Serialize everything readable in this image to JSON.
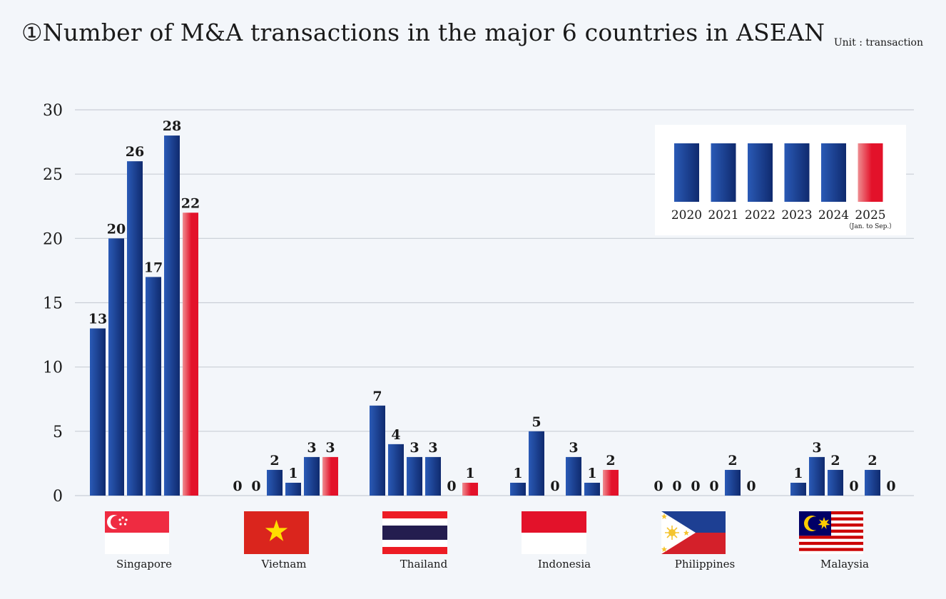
{
  "page": {
    "title": "①Number of M&A transactions in the major 6 countries in ASEAN",
    "unit": "Unit : transaction"
  },
  "colors": {
    "blue_light": "#2856b0",
    "blue_dark": "#0f2a6e",
    "red_light": "#f2878a",
    "red_dark": "#e3122a",
    "grid": "#c9ced6",
    "background": "#f3f6fa"
  },
  "chart_data": {
    "type": "bar",
    "title": "①Number of M&A transactions in the major 6 countries in ASEAN",
    "xlabel": "",
    "ylabel": "",
    "unit": "Unit : transaction",
    "ylim": [
      0,
      30
    ],
    "yticks": [
      0,
      5,
      10,
      15,
      20,
      25,
      30
    ],
    "grid": true,
    "legend_position": "top-right",
    "categories": [
      "Singapore",
      "Vietnam",
      "Thailand",
      "Indonesia",
      "Philippines",
      "Malaysia"
    ],
    "series": [
      {
        "name": "2020",
        "note": "",
        "color": "blue",
        "values": [
          13,
          0,
          7,
          1,
          0,
          1
        ]
      },
      {
        "name": "2021",
        "note": "",
        "color": "blue",
        "values": [
          20,
          0,
          4,
          5,
          0,
          3
        ]
      },
      {
        "name": "2022",
        "note": "",
        "color": "blue",
        "values": [
          26,
          2,
          3,
          0,
          0,
          2
        ]
      },
      {
        "name": "2023",
        "note": "",
        "color": "blue",
        "values": [
          17,
          1,
          3,
          3,
          0,
          0
        ]
      },
      {
        "name": "2024",
        "note": "",
        "color": "blue",
        "values": [
          28,
          3,
          0,
          1,
          2,
          2
        ]
      },
      {
        "name": "2025",
        "note": "（Jan. to Sep.）",
        "color": "red",
        "values": [
          22,
          3,
          1,
          2,
          0,
          0
        ]
      }
    ]
  },
  "flags": [
    {
      "country": "Singapore",
      "icon": "singapore-flag-icon"
    },
    {
      "country": "Vietnam",
      "icon": "vietnam-flag-icon"
    },
    {
      "country": "Thailand",
      "icon": "thailand-flag-icon"
    },
    {
      "country": "Indonesia",
      "icon": "indonesia-flag-icon"
    },
    {
      "country": "Philippines",
      "icon": "philippines-flag-icon"
    },
    {
      "country": "Malaysia",
      "icon": "malaysia-flag-icon"
    }
  ]
}
